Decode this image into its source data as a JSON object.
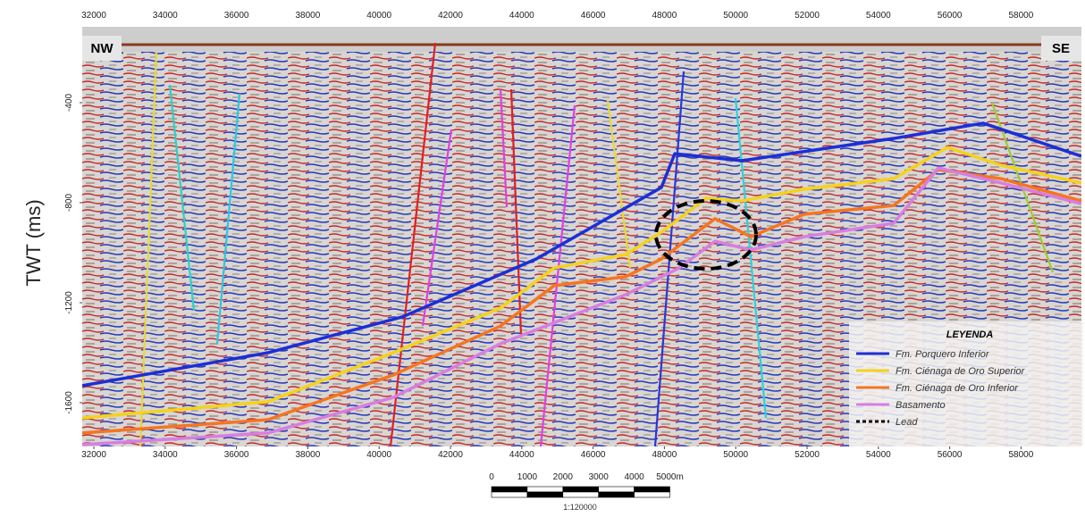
{
  "chart_data": {
    "type": "seismic",
    "y_label": "TWT (ms)",
    "side_labels": {
      "left": "NW",
      "right": "SE"
    },
    "xlim": [
      31674,
      59694
    ],
    "xticks": [
      32000,
      34000,
      36000,
      38000,
      40000,
      42000,
      44000,
      46000,
      48000,
      50000,
      52000,
      54000,
      56000,
      58000
    ],
    "ylim": [
      -1775,
      -150
    ],
    "yticks": [
      -400,
      -800,
      -1200,
      -1600
    ],
    "legend_title": "LEYENDA",
    "series": [
      {
        "name": "Fm. Porquero Inferior",
        "color": "#1c2fd6",
        "x": [
          31674,
          36887,
          40647,
          44406,
          47915,
          48291,
          50171,
          54431,
          56937,
          59694
        ],
        "values": [
          -1532,
          -1400,
          -1257,
          -1025,
          -739,
          -604,
          -632,
          -543,
          -482,
          -614
        ]
      },
      {
        "name": "Fm. Ciénaga de Oro Superior",
        "color": "#f5d21c",
        "x": [
          31674,
          36887,
          40396,
          43404,
          44907,
          46912,
          47915,
          49168,
          50171,
          51925,
          54431,
          55935,
          57439,
          59694
        ],
        "values": [
          -1661,
          -1596,
          -1400,
          -1221,
          -1061,
          -1007,
          -918,
          -782,
          -793,
          -746,
          -704,
          -579,
          -650,
          -721
        ]
      },
      {
        "name": "Fm. Ciénaga de Oro Inferior",
        "color": "#f5751f",
        "x": [
          31674,
          36887,
          40396,
          43404,
          44907,
          46912,
          47915,
          49419,
          50421,
          51925,
          54431,
          55684,
          57439,
          59694
        ],
        "values": [
          -1721,
          -1668,
          -1489,
          -1293,
          -1132,
          -1096,
          -1025,
          -864,
          -936,
          -846,
          -811,
          -668,
          -704,
          -793
        ]
      },
      {
        "name": "Basamento",
        "color": "#d77ee0",
        "x": [
          31674,
          36887,
          40396,
          43404,
          46912,
          48416,
          49419,
          50421,
          51925,
          54431,
          55684,
          57439,
          59694
        ],
        "values": [
          -1768,
          -1721,
          -1579,
          -1364,
          -1168,
          -1061,
          -954,
          -989,
          -936,
          -882,
          -661,
          -721,
          -804
        ]
      }
    ],
    "lead": {
      "name": "Lead",
      "color": "#000000"
    },
    "scale_bar": {
      "ticks": [
        0,
        1000,
        2000,
        3000,
        4000,
        {
          "value": 5000,
          "label": "5000m"
        }
      ],
      "scale": "1:120000"
    }
  }
}
